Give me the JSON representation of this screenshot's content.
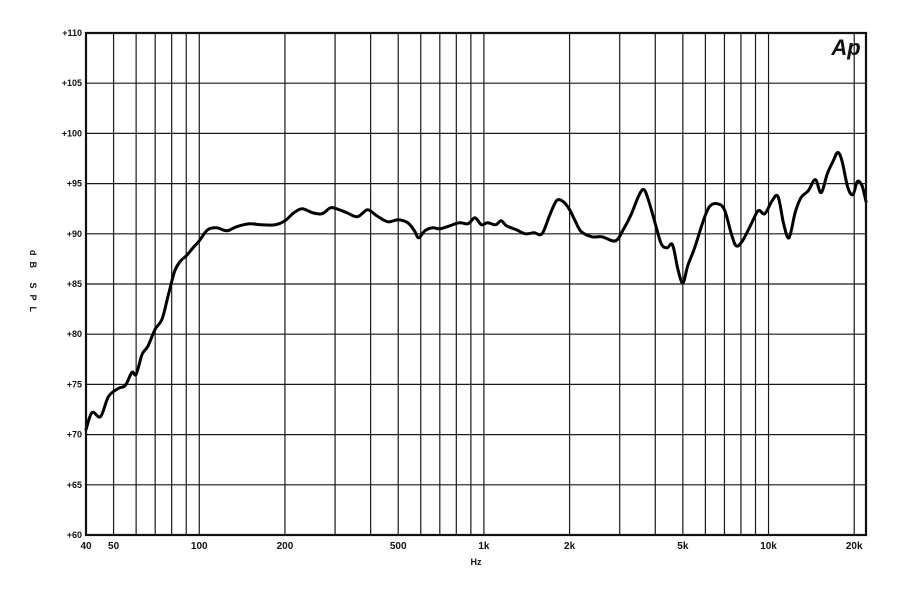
{
  "chart_data": {
    "type": "line",
    "title": "",
    "xlabel": "Hz",
    "ylabel": "dB SPL",
    "x_scale": "log",
    "xlim": [
      40,
      22000
    ],
    "ylim": [
      60,
      110
    ],
    "grid": true,
    "logo": "Ap",
    "y_ticks": [
      {
        "value": 60,
        "label": "+60"
      },
      {
        "value": 65,
        "label": "+65"
      },
      {
        "value": 70,
        "label": "+70"
      },
      {
        "value": 75,
        "label": "+75"
      },
      {
        "value": 80,
        "label": "+80"
      },
      {
        "value": 85,
        "label": "+85"
      },
      {
        "value": 90,
        "label": "+90"
      },
      {
        "value": 95,
        "label": "+95"
      },
      {
        "value": 100,
        "label": "+100"
      },
      {
        "value": 105,
        "label": "+105"
      },
      {
        "value": 110,
        "label": "+110"
      }
    ],
    "x_ticks": [
      {
        "value": 40,
        "label": "40"
      },
      {
        "value": 50,
        "label": "50"
      },
      {
        "value": 100,
        "label": "100"
      },
      {
        "value": 200,
        "label": "200"
      },
      {
        "value": 500,
        "label": "500"
      },
      {
        "value": 1000,
        "label": "1k"
      },
      {
        "value": 2000,
        "label": "2k"
      },
      {
        "value": 5000,
        "label": "5k"
      },
      {
        "value": 10000,
        "label": "10k"
      },
      {
        "value": 20000,
        "label": "20k"
      }
    ],
    "x_grid": [
      40,
      50,
      60,
      70,
      80,
      90,
      100,
      200,
      300,
      400,
      500,
      600,
      700,
      800,
      900,
      1000,
      2000,
      3000,
      4000,
      5000,
      6000,
      7000,
      8000,
      9000,
      10000,
      20000
    ],
    "series": [
      {
        "points": [
          [
            40,
            70.5
          ],
          [
            42,
            72.2
          ],
          [
            45,
            71.8
          ],
          [
            48,
            73.8
          ],
          [
            52,
            74.6
          ],
          [
            55,
            74.9
          ],
          [
            58,
            76.2
          ],
          [
            60,
            76.0
          ],
          [
            63,
            78.0
          ],
          [
            66,
            78.8
          ],
          [
            70,
            80.5
          ],
          [
            74,
            81.5
          ],
          [
            78,
            84.0
          ],
          [
            82,
            86.3
          ],
          [
            86,
            87.3
          ],
          [
            90,
            87.8
          ],
          [
            95,
            88.6
          ],
          [
            100,
            89.3
          ],
          [
            107,
            90.4
          ],
          [
            115,
            90.6
          ],
          [
            125,
            90.3
          ],
          [
            135,
            90.7
          ],
          [
            150,
            91.0
          ],
          [
            165,
            90.9
          ],
          [
            185,
            90.9
          ],
          [
            200,
            91.3
          ],
          [
            215,
            92.1
          ],
          [
            230,
            92.5
          ],
          [
            250,
            92.1
          ],
          [
            270,
            92.0
          ],
          [
            290,
            92.6
          ],
          [
            310,
            92.4
          ],
          [
            330,
            92.1
          ],
          [
            360,
            91.7
          ],
          [
            390,
            92.4
          ],
          [
            420,
            91.8
          ],
          [
            460,
            91.2
          ],
          [
            500,
            91.4
          ],
          [
            540,
            91.1
          ],
          [
            570,
            90.3
          ],
          [
            590,
            89.6
          ],
          [
            620,
            90.3
          ],
          [
            660,
            90.6
          ],
          [
            700,
            90.5
          ],
          [
            760,
            90.8
          ],
          [
            820,
            91.1
          ],
          [
            880,
            91.0
          ],
          [
            930,
            91.6
          ],
          [
            980,
            90.9
          ],
          [
            1030,
            91.1
          ],
          [
            1100,
            90.9
          ],
          [
            1150,
            91.3
          ],
          [
            1200,
            90.8
          ],
          [
            1300,
            90.4
          ],
          [
            1400,
            90.0
          ],
          [
            1500,
            90.1
          ],
          [
            1600,
            90.0
          ],
          [
            1700,
            91.8
          ],
          [
            1800,
            93.3
          ],
          [
            1900,
            93.2
          ],
          [
            2000,
            92.4
          ],
          [
            2100,
            91.2
          ],
          [
            2200,
            90.2
          ],
          [
            2400,
            89.7
          ],
          [
            2600,
            89.7
          ],
          [
            2900,
            89.3
          ],
          [
            3100,
            90.5
          ],
          [
            3300,
            92.0
          ],
          [
            3500,
            93.8
          ],
          [
            3650,
            94.4
          ],
          [
            3800,
            93.2
          ],
          [
            4000,
            91.0
          ],
          [
            4200,
            89.0
          ],
          [
            4400,
            88.6
          ],
          [
            4600,
            88.9
          ],
          [
            4800,
            86.5
          ],
          [
            5000,
            85.1
          ],
          [
            5200,
            86.8
          ],
          [
            5500,
            88.6
          ],
          [
            5900,
            91.3
          ],
          [
            6200,
            92.7
          ],
          [
            6600,
            93.0
          ],
          [
            7000,
            92.4
          ],
          [
            7400,
            90.0
          ],
          [
            7700,
            88.8
          ],
          [
            8100,
            89.3
          ],
          [
            8700,
            91.0
          ],
          [
            9200,
            92.3
          ],
          [
            9700,
            92.0
          ],
          [
            10300,
            93.3
          ],
          [
            10800,
            93.7
          ],
          [
            11300,
            91.0
          ],
          [
            11800,
            89.6
          ],
          [
            12400,
            92.1
          ],
          [
            13000,
            93.6
          ],
          [
            13800,
            94.3
          ],
          [
            14600,
            95.4
          ],
          [
            15300,
            94.1
          ],
          [
            16100,
            96.0
          ],
          [
            16900,
            97.3
          ],
          [
            17500,
            98.1
          ],
          [
            18100,
            97.3
          ],
          [
            19000,
            94.6
          ],
          [
            19800,
            93.9
          ],
          [
            20500,
            95.2
          ],
          [
            21300,
            94.8
          ],
          [
            22000,
            93.2
          ]
        ]
      }
    ]
  }
}
